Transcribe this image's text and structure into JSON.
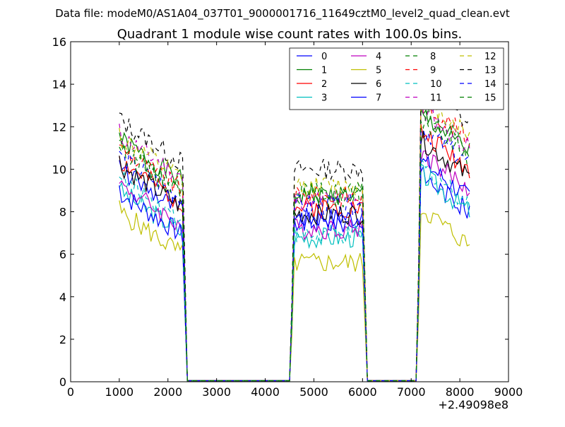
{
  "chart_data": {
    "type": "line",
    "suptitle": "Data file: modeM0/AS1A04_037T01_9000001716_11649cztM0_level2_quad_clean.evt",
    "title": "Quadrant 1 module wise count rates with 100.0s bins.",
    "xlabel": "",
    "ylabel": "",
    "x_offset_label": "+2.49098e8",
    "xlim": [
      0,
      9000
    ],
    "ylim": [
      0,
      16
    ],
    "xticks": [
      0,
      1000,
      2000,
      3000,
      4000,
      5000,
      6000,
      7000,
      8000,
      9000
    ],
    "yticks": [
      0,
      2,
      4,
      6,
      8,
      10,
      12,
      14,
      16
    ],
    "grid": false,
    "legend_placement": "top-right",
    "legend_columns": 4,
    "segments": [
      {
        "x_start": 1000,
        "x_end": 2300
      },
      {
        "x_start": 4600,
        "x_end": 6000
      },
      {
        "x_start": 7200,
        "x_end": 8200
      }
    ],
    "series": [
      {
        "name": "0",
        "color": "#0000ff",
        "dash": "solid",
        "levels": [
          9.0,
          7.5,
          9.0
        ]
      },
      {
        "name": "1",
        "color": "#008000",
        "dash": "solid",
        "levels": [
          10.4,
          8.8,
          11.8
        ]
      },
      {
        "name": "2",
        "color": "#ff0000",
        "dash": "solid",
        "levels": [
          9.4,
          8.2,
          11.0
        ]
      },
      {
        "name": "3",
        "color": "#00bfbf",
        "dash": "solid",
        "levels": [
          8.0,
          6.8,
          9.0
        ]
      },
      {
        "name": "4",
        "color": "#bf00bf",
        "dash": "solid",
        "levels": [
          8.3,
          7.2,
          10.0
        ]
      },
      {
        "name": "5",
        "color": "#bfbf00",
        "dash": "solid",
        "levels": [
          7.0,
          5.6,
          7.4
        ]
      },
      {
        "name": "6",
        "color": "#000000",
        "dash": "solid",
        "levels": [
          9.2,
          7.9,
          10.6
        ]
      },
      {
        "name": "7",
        "color": "#0000ff",
        "dash": "solid",
        "levels": [
          7.9,
          7.7,
          9.6
        ]
      },
      {
        "name": "8",
        "color": "#008000",
        "dash": "dashed",
        "levels": [
          10.1,
          8.6,
          12.0
        ]
      },
      {
        "name": "9",
        "color": "#ff0000",
        "dash": "dashed",
        "levels": [
          10.0,
          8.7,
          12.4
        ]
      },
      {
        "name": "10",
        "color": "#00bfbf",
        "dash": "dashed",
        "levels": [
          8.6,
          6.9,
          9.4
        ]
      },
      {
        "name": "11",
        "color": "#bf00bf",
        "dash": "dashed",
        "levels": [
          10.6,
          8.6,
          12.0
        ]
      },
      {
        "name": "12",
        "color": "#bfbf00",
        "dash": "dashed",
        "levels": [
          10.5,
          9.2,
          12.6
        ]
      },
      {
        "name": "13",
        "color": "#000000",
        "dash": "dashed",
        "levels": [
          11.3,
          10.0,
          13.1
        ]
      },
      {
        "name": "14",
        "color": "#0000ff",
        "dash": "dashed",
        "levels": [
          9.6,
          8.3,
          11.2
        ]
      },
      {
        "name": "15",
        "color": "#008000",
        "dash": "dashed",
        "levels": [
          9.9,
          8.9,
          11.6
        ]
      }
    ]
  }
}
